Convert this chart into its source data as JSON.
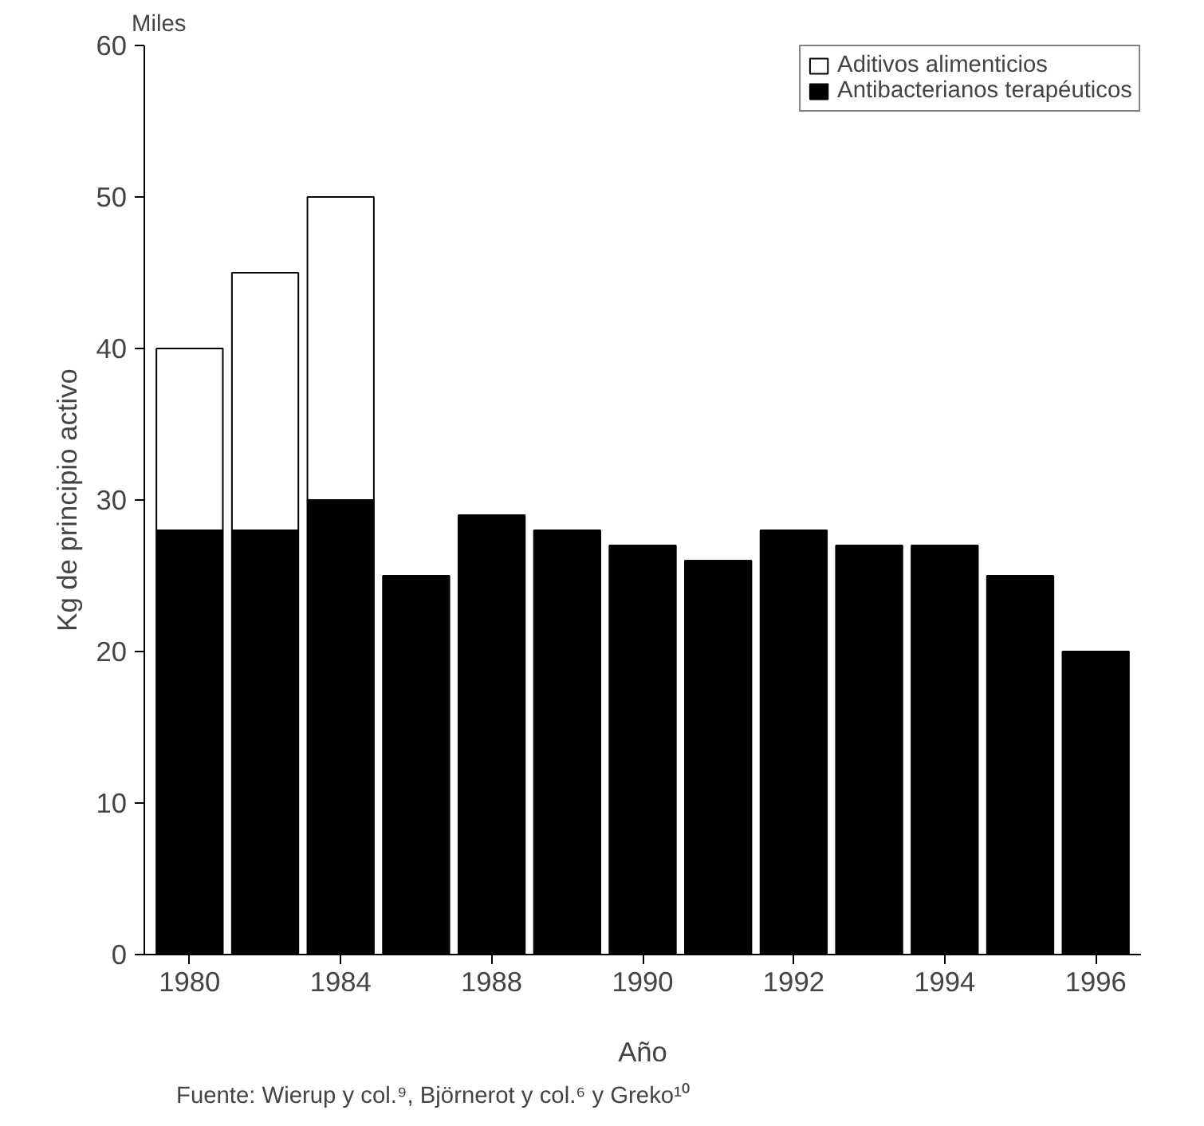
{
  "chart_data": {
    "type": "bar",
    "stacked": true,
    "xlabel": "Año",
    "ylabel": "Kg de principio activo",
    "categories": [
      "1980",
      null,
      "1984",
      null,
      "1988",
      null,
      "1990",
      null,
      "1992",
      null,
      "1994",
      null,
      "1996"
    ],
    "series": [
      {
        "name": "Antibacterianos terapéuticos",
        "color": "#000000",
        "values": [
          28,
          28,
          30,
          25,
          29,
          28,
          27,
          26,
          28,
          27,
          27,
          25,
          20
        ]
      },
      {
        "name": "Aditivos alimenticios",
        "color": "#ffffff",
        "values": [
          12,
          17,
          20,
          null,
          null,
          null,
          null,
          null,
          null,
          null,
          null,
          null,
          null
        ]
      }
    ],
    "ylim": [
      0,
      60
    ],
    "yticks": [
      0,
      10,
      20,
      30,
      40,
      50,
      60
    ],
    "legend": "top right",
    "grid": false,
    "annotations": [
      "Miles",
      "Fuente: Wierup y col.⁹, Björnerot y col.⁶ y Greko¹⁰"
    ]
  }
}
